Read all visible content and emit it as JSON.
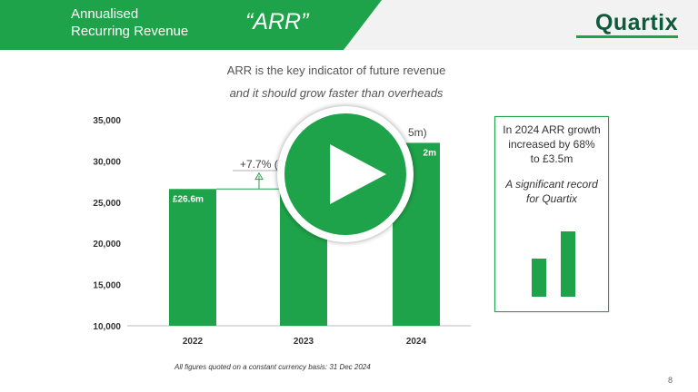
{
  "header": {
    "title_line1": "Annualised",
    "title_line2": "Recurring Revenue",
    "acronym": "“ARR”",
    "logo": "Quartix",
    "brand_color": "#1fa34a"
  },
  "subtitle": {
    "line1": "ARR is the key indicator of future revenue",
    "line2": "and it should grow faster than overheads"
  },
  "chart_data": {
    "type": "bar",
    "categories": [
      "2022",
      "2023",
      "2024"
    ],
    "values": [
      26600,
      28650,
      32200
    ],
    "data_labels": [
      "£26.6m",
      "",
      "2m"
    ],
    "ylim": [
      10000,
      35000
    ],
    "yticks": [
      "10,000",
      "15,000",
      "20,000",
      "25,000",
      "30,000",
      "35,000"
    ],
    "annotation_growth": "+7.7% (",
    "annotation_partial": "5m)",
    "grid": false
  },
  "sidebox": {
    "line1": "In 2024 ARR growth",
    "line2": "increased by 68%",
    "line3": "to £3.5m",
    "italic1": "A significant record",
    "italic2": "for Quartix",
    "mini_bars": [
      0.58,
      1.0
    ]
  },
  "footnote": "All figures quoted on a constant currency basis:  31 Dec 2024",
  "page_number": "8",
  "play_button": {
    "icon": "play-icon"
  }
}
